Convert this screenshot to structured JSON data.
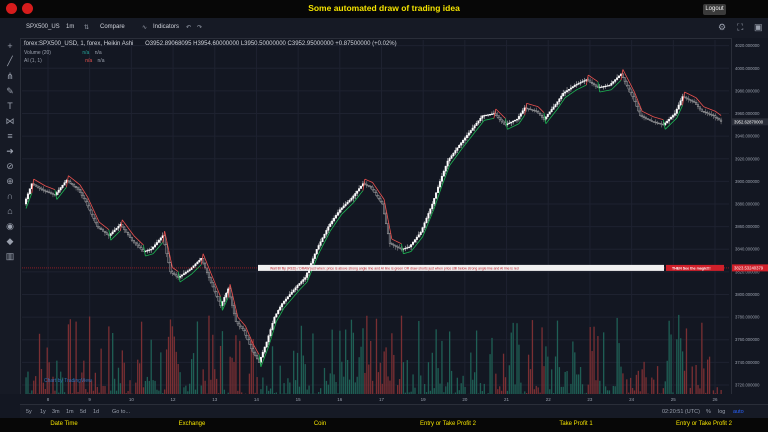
{
  "app": {
    "title": "Some automated draw of trading idea",
    "logout_label": "Logout"
  },
  "toolbar": {
    "symbol": "SPX500_US",
    "interval": "1m",
    "compare_label": "Compare",
    "indicators_label": "Indicators"
  },
  "legend": {
    "main": "forex:SPX500_USD, 1, forex, Heikin Ashi",
    "ohlc": "O3952.89068095  H3954.60000000  L3950.50000000  C3952.95000000  +0.87500000 (+0.02%)",
    "volume": "Volume (20)",
    "volume_value": "n/a",
    "volume_value2": "n/a",
    "ai": "AI (1, 1)",
    "ai_value": "n/a",
    "ai_value2": "n/a"
  },
  "watermark": "Chart by TradingView",
  "annotation": {
    "text": "Wait till flip (RED)  /  DRAW just when: price is above strong angle line and AI line is green  OR  draw shorts just when price still below strong angle line and AI line is red",
    "callout": "THEN See the magic!!!",
    "price_label": "3823.53240379",
    "price": 3823.5324,
    "color": "#d0202a"
  },
  "time_axis": {
    "labels": [
      "8",
      "9",
      "10",
      "12",
      "13",
      "14",
      "15",
      "16",
      "17",
      "19",
      "20",
      "21",
      "22",
      "23",
      "24",
      "25",
      "26"
    ],
    "timezone": "02:20:51 (UTC)"
  },
  "range_buttons": [
    "5y",
    "1y",
    "3m",
    "1m",
    "5d",
    "1d",
    "Go to..."
  ],
  "scale_buttons": [
    "%",
    "log",
    "auto"
  ],
  "price_axis": {
    "ticks": [
      "4020.000000",
      "4000.000000",
      "3980.000000",
      "3960.000000",
      "3940.000000",
      "3920.000000",
      "3900.000000",
      "3880.000000",
      "3860.000000",
      "3840.000000",
      "3820.000000",
      "3800.000000",
      "3780.000000",
      "3760.000000",
      "3740.000000",
      "3720.000000"
    ],
    "last_price_label": "3952.62870000",
    "last_price": 3952.6287
  },
  "footer": {
    "items": [
      "Date Time",
      "Exchange",
      "Coin",
      "Entry or Take Profit 2",
      "Take Profit 1",
      "Entry or Take Profit 2"
    ]
  },
  "colors": {
    "up": "#26a69a",
    "down": "#ef5350",
    "signal": "#1db954",
    "background": "#131722",
    "accent": "#f5e400"
  },
  "chart_data": {
    "type": "candlestick",
    "price_range": [
      3712,
      4025
    ],
    "x_labels": [
      "8",
      "9",
      "10",
      "12",
      "13",
      "14",
      "15",
      "16",
      "17",
      "19",
      "20",
      "21",
      "22",
      "23",
      "24",
      "25",
      "26"
    ],
    "price_path": [
      [
        0,
        3880
      ],
      [
        4,
        3898
      ],
      [
        10,
        3892
      ],
      [
        16,
        3888
      ],
      [
        22,
        3901
      ],
      [
        28,
        3893
      ],
      [
        32,
        3882
      ],
      [
        38,
        3860
      ],
      [
        44,
        3852
      ],
      [
        50,
        3862
      ],
      [
        56,
        3848
      ],
      [
        62,
        3838
      ],
      [
        66,
        3840
      ],
      [
        72,
        3852
      ],
      [
        76,
        3820
      ],
      [
        80,
        3815
      ],
      [
        86,
        3822
      ],
      [
        92,
        3832
      ],
      [
        96,
        3815
      ],
      [
        102,
        3790
      ],
      [
        106,
        3805
      ],
      [
        110,
        3776
      ],
      [
        114,
        3768
      ],
      [
        118,
        3752
      ],
      [
        122,
        3740
      ],
      [
        126,
        3758
      ],
      [
        130,
        3780
      ],
      [
        134,
        3792
      ],
      [
        138,
        3800
      ],
      [
        142,
        3808
      ],
      [
        146,
        3815
      ],
      [
        152,
        3840
      ],
      [
        158,
        3860
      ],
      [
        164,
        3875
      ],
      [
        170,
        3885
      ],
      [
        176,
        3898
      ],
      [
        180,
        3895
      ],
      [
        186,
        3880
      ],
      [
        190,
        3845
      ],
      [
        196,
        3840
      ],
      [
        200,
        3842
      ],
      [
        206,
        3855
      ],
      [
        212,
        3880
      ],
      [
        216,
        3900
      ],
      [
        220,
        3918
      ],
      [
        226,
        3932
      ],
      [
        232,
        3945
      ],
      [
        238,
        3958
      ],
      [
        244,
        3960
      ],
      [
        250,
        3950
      ],
      [
        256,
        3955
      ],
      [
        260,
        3965
      ],
      [
        266,
        3962
      ],
      [
        270,
        3955
      ],
      [
        276,
        3968
      ],
      [
        280,
        3978
      ],
      [
        286,
        3985
      ],
      [
        292,
        3990
      ],
      [
        298,
        3983
      ],
      [
        304,
        3985
      ],
      [
        310,
        3995
      ],
      [
        316,
        3975
      ],
      [
        320,
        3958
      ],
      [
        326,
        3953
      ],
      [
        332,
        3950
      ],
      [
        338,
        3960
      ],
      [
        342,
        3975
      ],
      [
        348,
        3970
      ],
      [
        352,
        3962
      ],
      [
        358,
        3958
      ],
      [
        362,
        3953
      ]
    ],
    "n_candles": 362,
    "volume_max": 100,
    "volume_range": [
      0,
      100
    ],
    "ai_line": "follows price, green when bullish, red when bearish",
    "signal_line_price": 3823.5
  }
}
